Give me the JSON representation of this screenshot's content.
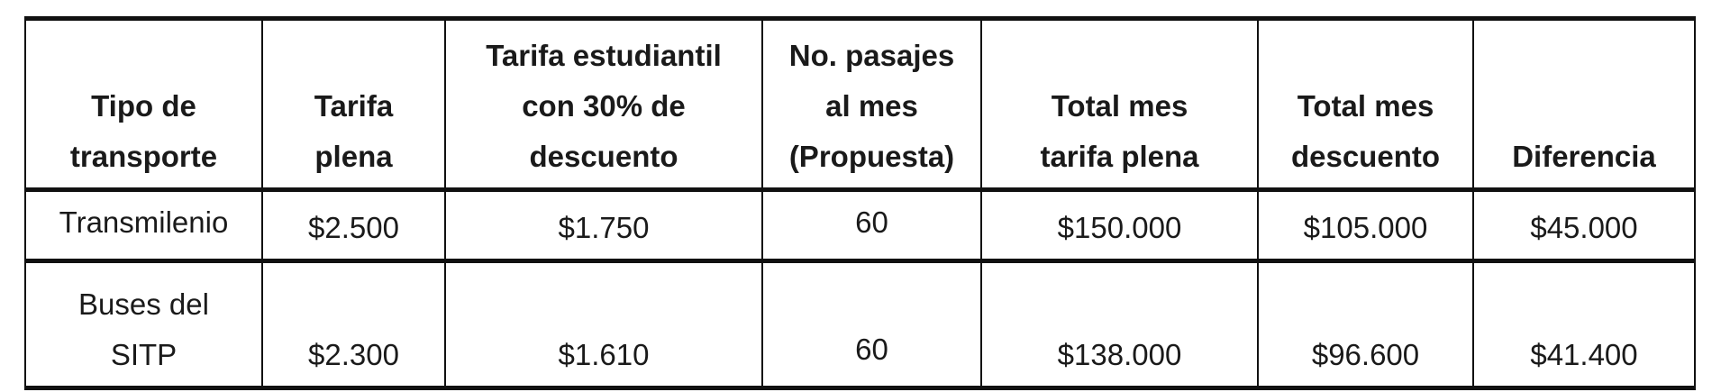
{
  "table": {
    "headers": [
      [
        "Tipo de",
        "transporte"
      ],
      [
        "Tarifa",
        "plena"
      ],
      [
        "Tarifa estudiantil",
        "con 30% de",
        "descuento"
      ],
      [
        "No. pasajes",
        "al mes",
        "(Propuesta)"
      ],
      [
        "Total mes",
        "tarifa plena"
      ],
      [
        "Total mes",
        "descuento"
      ],
      [
        "Diferencia"
      ]
    ],
    "rows": [
      {
        "tipo": [
          "Transmilenio"
        ],
        "tarifa_plena": "$2.500",
        "tarifa_estudiantil": "$1.750",
        "pasajes": "60",
        "total_plena": "$150.000",
        "total_descuento": "$105.000",
        "diferencia": "$45.000"
      },
      {
        "tipo": [
          "Buses del",
          "SITP"
        ],
        "tarifa_plena": "$2.300",
        "tarifa_estudiantil": "$1.610",
        "pasajes": "60",
        "total_plena": "$138.000",
        "total_descuento": "$96.600",
        "diferencia": "$41.400"
      }
    ]
  }
}
